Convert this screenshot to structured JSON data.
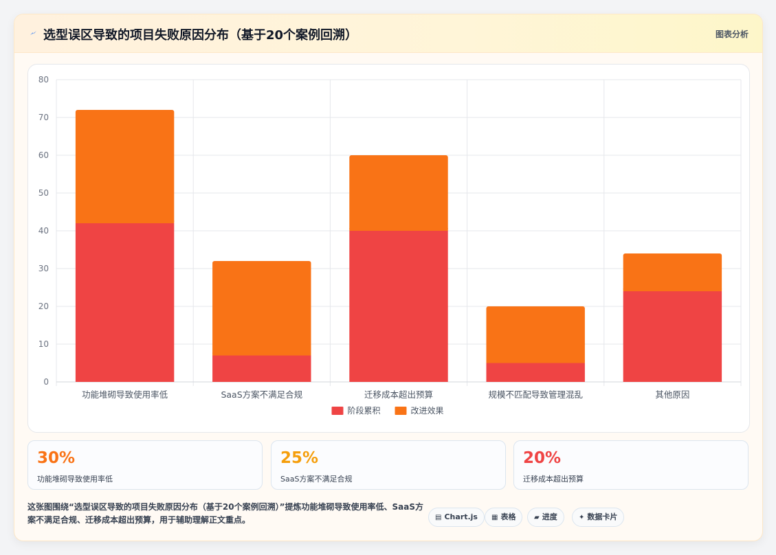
{
  "header": {
    "title": "选型误区导致的项目失败原因分布（基于20个案例回溯）",
    "title_icon": "zap-icon",
    "link_label": "图表分析"
  },
  "chart_data": {
    "type": "bar",
    "stacked": true,
    "categories": [
      "功能堆砌导致使用率低",
      "SaaS方案不满足合规",
      "迁移成本超出预算",
      "规模不匹配导致管理混乱",
      "其他原因"
    ],
    "series": [
      {
        "name": "阶段累积",
        "color": "#ef4444",
        "values": [
          42,
          7,
          40,
          5,
          24
        ]
      },
      {
        "name": "改进效果",
        "color": "#f97316",
        "values": [
          30,
          25,
          20,
          15,
          10
        ]
      }
    ],
    "ylim": [
      0,
      80
    ],
    "yticks": [
      0,
      10,
      20,
      30,
      40,
      50,
      60,
      70,
      80
    ],
    "grid": true,
    "legend_position": "bottom"
  },
  "stats": [
    {
      "value": "30%",
      "label": "功能堆砌导致使用率低",
      "color": "#f97316"
    },
    {
      "value": "25%",
      "label": "SaaS方案不满足合规",
      "color": "#f59e0b"
    },
    {
      "value": "20%",
      "label": "迁移成本超出预算",
      "color": "#ef4444"
    }
  ],
  "description": "这张图围绕“选型误区导致的项目失败原因分布（基于20个案例回溯）”提炼功能堆砌导致使用率低、SaaS方案不满足合规、迁移成本超出预算，用于辅助理解正文重点。",
  "chips": [
    {
      "icon": "▤",
      "label": "Chart.js",
      "icon_name": "chart-icon"
    },
    {
      "icon": "▦",
      "label": "表格",
      "icon_name": "table-icon"
    },
    {
      "icon": "▰",
      "label": "进度",
      "icon_name": "progress-icon"
    },
    {
      "icon": "✦",
      "label": "数据卡片",
      "icon_name": "sparkle-icon"
    }
  ]
}
